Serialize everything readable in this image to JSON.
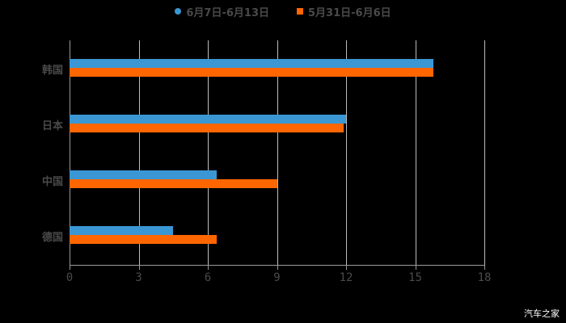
{
  "legend": [
    {
      "label": "6月7日-6月13日",
      "color": "#3a97d4",
      "shape": "circle"
    },
    {
      "label": "5月31日-6月6日",
      "color": "#ff6600",
      "shape": "square"
    }
  ],
  "watermark": "汽车之家",
  "chart_data": {
    "type": "bar",
    "orientation": "horizontal",
    "categories": [
      "韩国",
      "日本",
      "中国",
      "德国"
    ],
    "series": [
      {
        "name": "6月7日-6月13日",
        "color": "#3a97d4",
        "values": [
          15.8,
          12.0,
          6.4,
          4.5
        ]
      },
      {
        "name": "5月31日-6月6日",
        "color": "#ff6600",
        "values": [
          15.8,
          11.9,
          9.0,
          6.4
        ]
      }
    ],
    "title": "",
    "xlabel": "",
    "ylabel": "",
    "xlim": [
      0,
      18
    ],
    "xticks": [
      "0",
      "3",
      "6",
      "9",
      "12",
      "15",
      "18"
    ],
    "grid": true,
    "legend_position": "top"
  }
}
